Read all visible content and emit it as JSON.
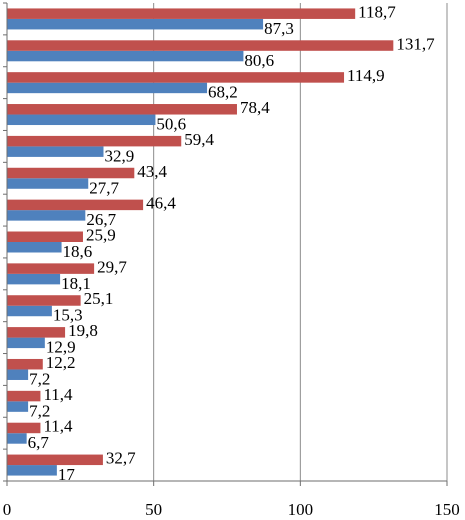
{
  "chart_data": {
    "type": "bar",
    "orientation": "horizontal",
    "decimal_separator": ",",
    "xlim": [
      0,
      150
    ],
    "x_ticks": [
      0,
      50,
      100,
      150
    ],
    "grid": "vertical",
    "legend": "none",
    "categories": [
      "",
      "",
      "",
      "",
      "",
      "",
      "",
      "",
      "",
      "",
      "",
      "",
      "",
      "",
      ""
    ],
    "series": [
      {
        "color": "#4f81bd",
        "values": [
          87.3,
          80.6,
          68.2,
          50.6,
          32.9,
          27.7,
          26.7,
          18.6,
          18.1,
          15.3,
          12.9,
          7.2,
          7.2,
          6.7,
          17
        ],
        "labels": [
          "87,3",
          "80,6",
          "68,2",
          "50,6",
          "32,9",
          "27,7",
          "26,7",
          "18,6",
          "18,1",
          "15,3",
          "12,9",
          "7,2",
          "7,2",
          "6,7",
          "17"
        ]
      },
      {
        "color": "#c0504d",
        "values": [
          118.7,
          131.7,
          114.9,
          78.4,
          59.4,
          43.4,
          46.4,
          25.9,
          29.7,
          25.1,
          19.8,
          12.2,
          11.4,
          11.4,
          32.7
        ],
        "labels": [
          "118,7",
          "131,7",
          "114,9",
          "78,4",
          "59,4",
          "43,4",
          "46,4",
          "25,9",
          "29,7",
          "25,1",
          "19,8",
          "12,2",
          "11,4",
          "11,4",
          "32,7"
        ]
      }
    ]
  }
}
